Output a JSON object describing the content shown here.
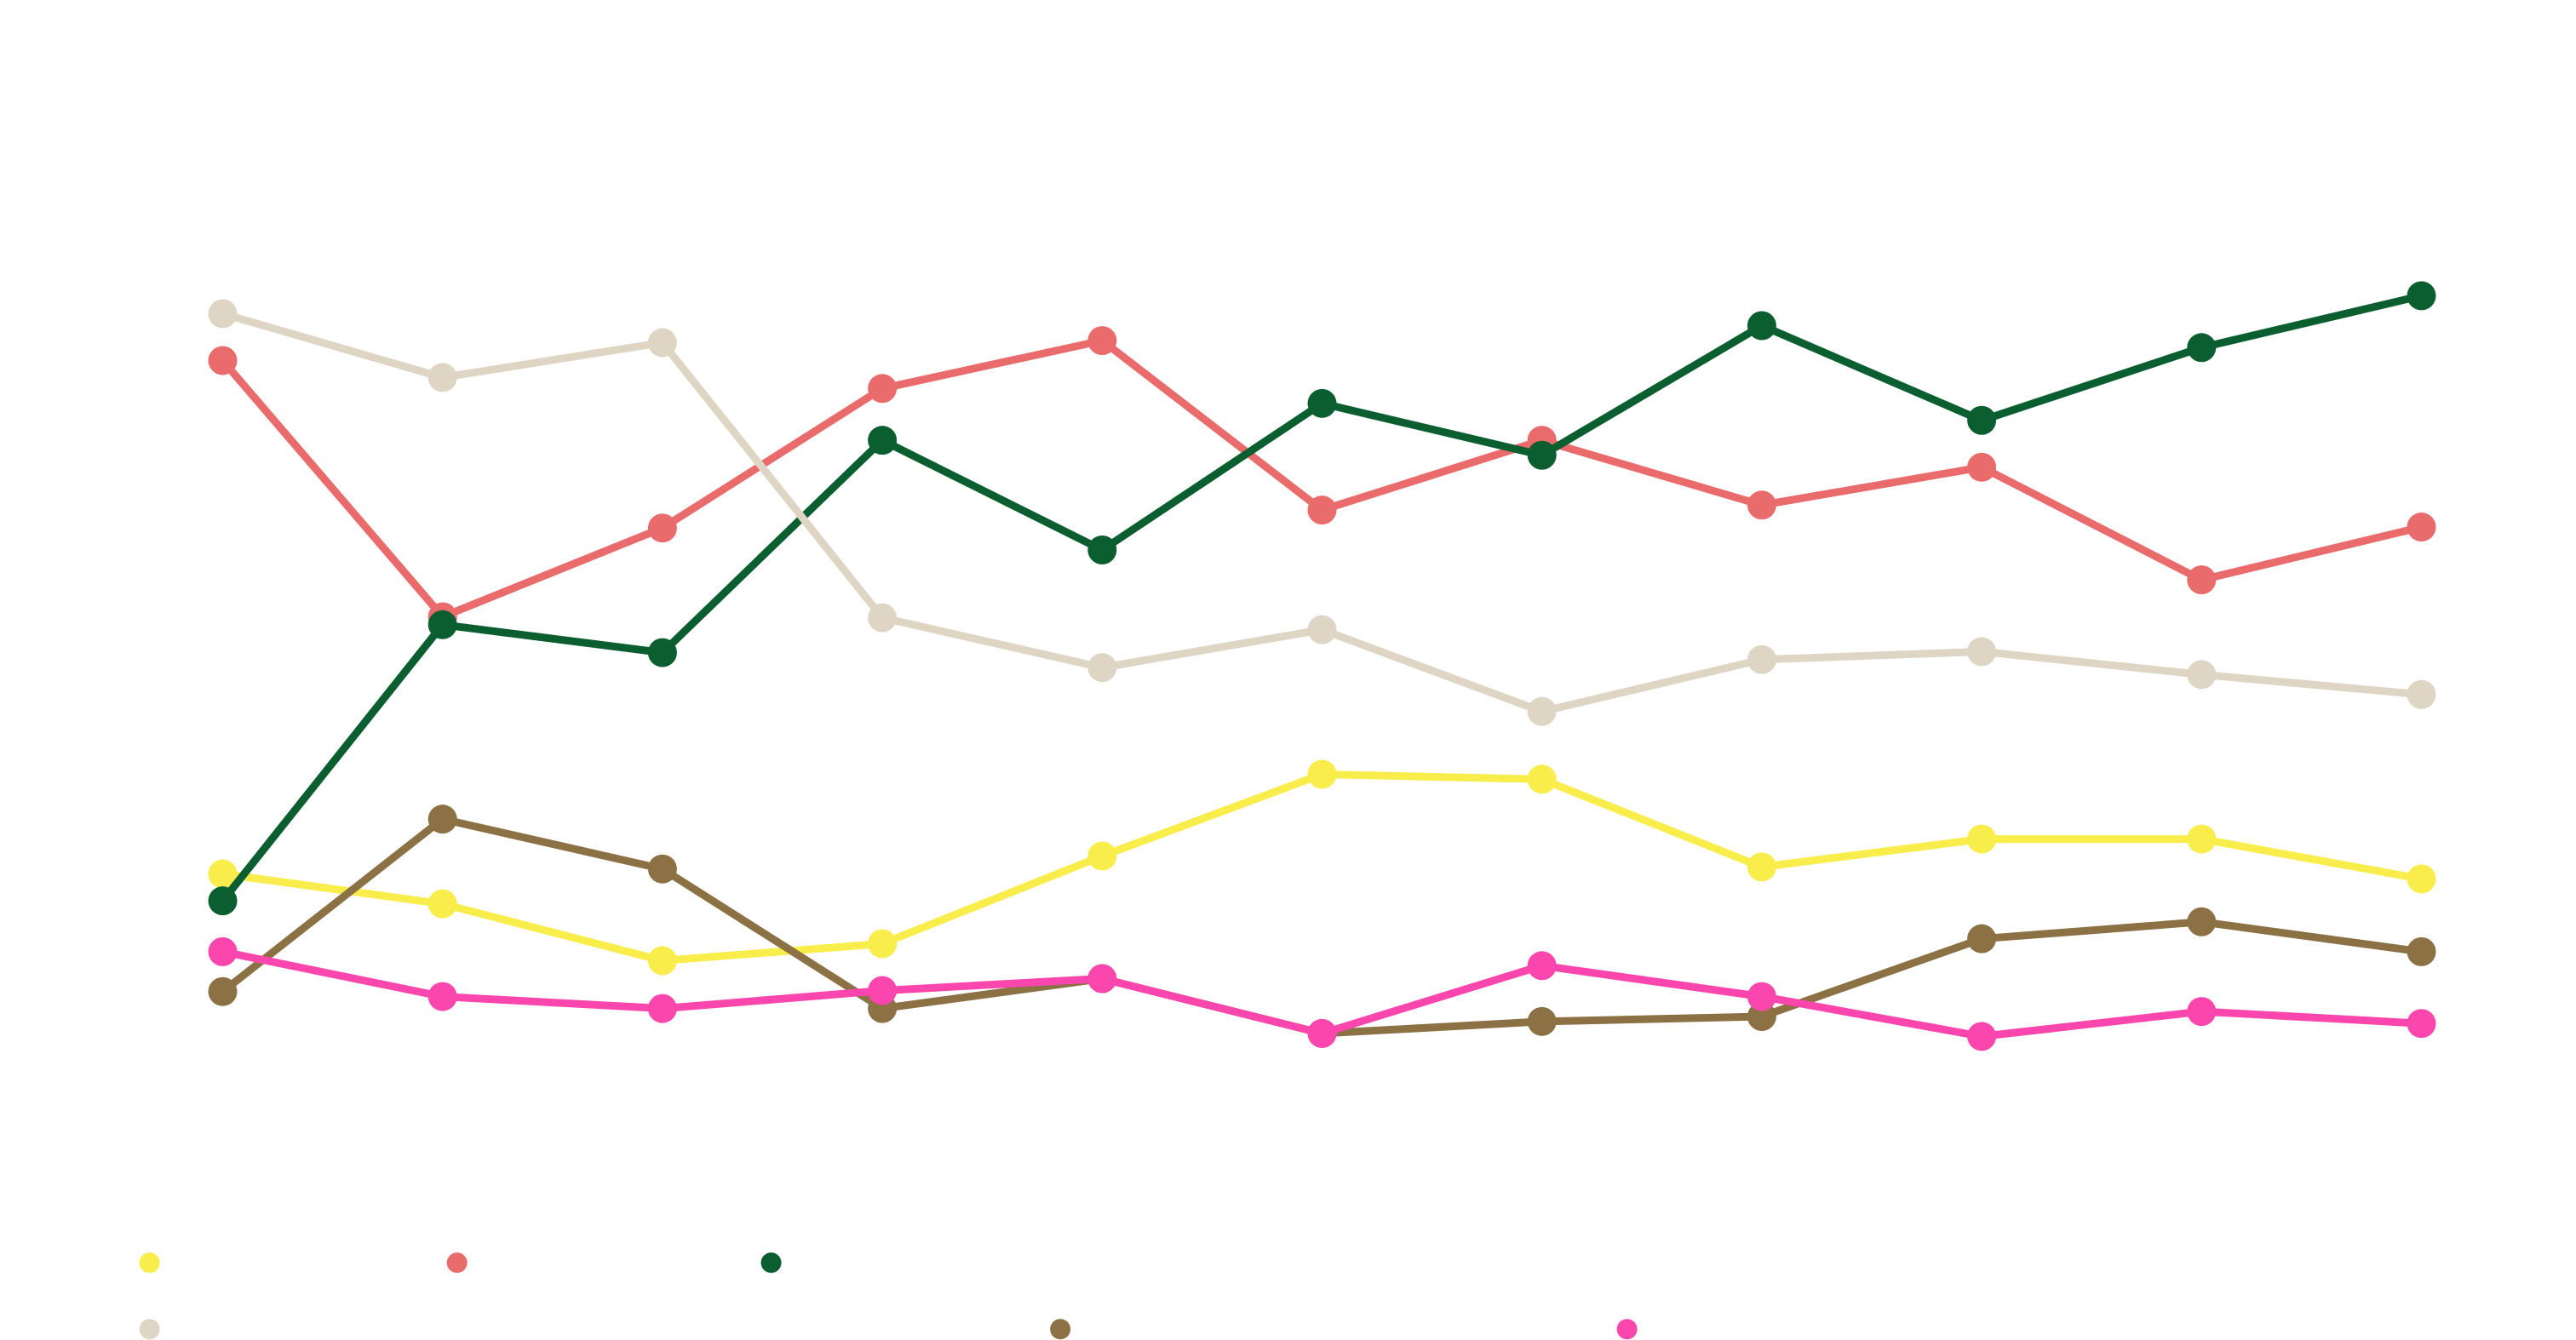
{
  "chart_data": {
    "type": "line",
    "categories": [
      null,
      null,
      null,
      null,
      null,
      null,
      null,
      null,
      null,
      null,
      null
    ],
    "ylim": [
      0,
      100
    ],
    "legend": "bottom",
    "series": [
      {
        "color": "#f9ed4b",
        "values": [
          29.0,
          26.0,
          20.3,
          22.0,
          30.8,
          39.0,
          38.5,
          29.7,
          32.5,
          32.5,
          28.5
        ]
      },
      {
        "color": "#e96b6b",
        "values": [
          80.5,
          54.8,
          63.7,
          77.7,
          82.5,
          65.5,
          72.5,
          66.0,
          69.8,
          58.5,
          63.8
        ]
      },
      {
        "color": "#0a5e2f",
        "values": [
          26.3,
          54.0,
          51.2,
          72.5,
          61.5,
          76.2,
          71.0,
          84.0,
          74.5,
          81.8,
          87.0
        ]
      },
      {
        "color": "#dfd5c4",
        "values": [
          85.2,
          78.8,
          82.3,
          54.7,
          49.7,
          53.5,
          45.3,
          50.5,
          51.3,
          49.0,
          47.0
        ]
      },
      {
        "color": "#8b7144",
        "values": [
          17.2,
          34.5,
          29.5,
          15.5,
          18.5,
          13.0,
          14.2,
          14.7,
          22.5,
          24.2,
          21.2
        ]
      },
      {
        "color": "#fb47ad",
        "values": [
          21.2,
          16.7,
          15.5,
          17.3,
          18.5,
          13.0,
          19.8,
          16.7,
          12.7,
          15.2,
          14.0
        ]
      }
    ]
  }
}
